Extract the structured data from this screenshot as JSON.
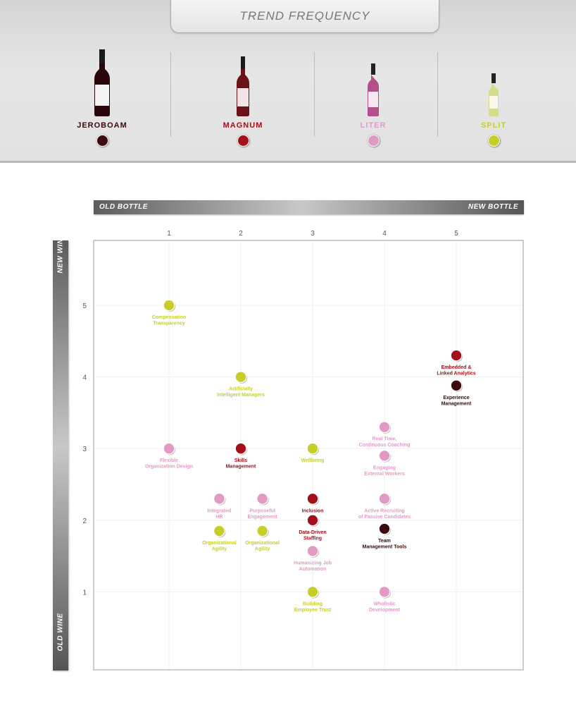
{
  "header": {
    "title": "TREND FREQUENCY",
    "sizes": [
      {
        "label": "JEROBOAM",
        "color": "#3a0a0c",
        "label_color": "#3a0a0c"
      },
      {
        "label": "MAGNUM",
        "color": "#a3101a",
        "label_color": "#a3101a"
      },
      {
        "label": "LITER",
        "color": "#e29ac4",
        "label_color": "#e29ac4"
      },
      {
        "label": "SPLIT",
        "color": "#c6cf2a",
        "label_color": "#c6cf2a"
      }
    ]
  },
  "axes": {
    "x_left_label": "OLD BOTTLE",
    "x_right_label": "NEW BOTTLE",
    "y_top_label": "NEW WINE",
    "y_bottom_label": "OLD WINE"
  },
  "chart_data": {
    "type": "scatter",
    "x_ticks": [
      1,
      2,
      3,
      4,
      5
    ],
    "y_ticks": [
      1,
      2,
      3,
      4,
      5
    ],
    "xlim": [
      0,
      6
    ],
    "ylim": [
      0,
      6
    ],
    "grid": true,
    "series_colors": {
      "JEROBOAM": "#3a0a0c",
      "MAGNUM": "#a3101a",
      "LITER": "#e29ac4",
      "SPLIT": "#c6cf2a"
    },
    "points": [
      {
        "label": [
          "Compensation",
          "Transparency"
        ],
        "x": 1.0,
        "y": 5.0,
        "size": "SPLIT"
      },
      {
        "label": [
          "Artificially",
          "Intelligent Managers"
        ],
        "x": 2.0,
        "y": 4.0,
        "size": "SPLIT"
      },
      {
        "label": [
          "Embedded &",
          "Linked Analytics"
        ],
        "x": 5.0,
        "y": 4.3,
        "size": "MAGNUM"
      },
      {
        "label": [
          "Experience",
          "Management"
        ],
        "x": 5.0,
        "y": 3.88,
        "size": "JEROBOAM"
      },
      {
        "label": [
          "Real Time,",
          "Continuous Coaching"
        ],
        "x": 4.0,
        "y": 3.3,
        "size": "LITER"
      },
      {
        "label": [
          "Flexible",
          "Organization Design"
        ],
        "x": 1.0,
        "y": 3.0,
        "size": "LITER"
      },
      {
        "label": [
          "Skills",
          "Management"
        ],
        "x": 2.0,
        "y": 3.0,
        "size": "MAGNUM"
      },
      {
        "label": [
          "Wellbeing"
        ],
        "x": 3.0,
        "y": 3.0,
        "size": "SPLIT"
      },
      {
        "label": [
          "Engaging",
          "External Workers"
        ],
        "x": 4.0,
        "y": 2.9,
        "size": "LITER"
      },
      {
        "label": [
          "Integrated",
          "HR"
        ],
        "x": 1.7,
        "y": 2.3,
        "size": "LITER"
      },
      {
        "label": [
          "Purposeful",
          "Engagement"
        ],
        "x": 2.3,
        "y": 2.3,
        "size": "LITER"
      },
      {
        "label": [
          "Inclusion"
        ],
        "x": 3.0,
        "y": 2.3,
        "size": "MAGNUM"
      },
      {
        "label": [
          "Active Recruiting",
          "of Passive Candidates"
        ],
        "x": 4.0,
        "y": 2.3,
        "size": "LITER"
      },
      {
        "label": [
          "Data-Driven",
          "Staffing"
        ],
        "x": 3.0,
        "y": 2.0,
        "size": "MAGNUM"
      },
      {
        "label": [
          "Team",
          "Management Tools"
        ],
        "x": 4.0,
        "y": 1.88,
        "size": "JEROBOAM"
      },
      {
        "label": [
          "Organizational",
          "Agility"
        ],
        "x": 1.7,
        "y": 1.85,
        "size": "SPLIT"
      },
      {
        "label": [
          "Organizational",
          "Agility"
        ],
        "x": 2.3,
        "y": 1.85,
        "size": "SPLIT"
      },
      {
        "label": [
          "Humanizing Job",
          "Automation"
        ],
        "x": 3.0,
        "y": 1.57,
        "size": "LITER"
      },
      {
        "label": [
          "Building",
          "Employee Trust"
        ],
        "x": 3.0,
        "y": 1.0,
        "size": "SPLIT"
      },
      {
        "label": [
          "Wholistic",
          "Development"
        ],
        "x": 4.0,
        "y": 1.0,
        "size": "LITER"
      }
    ]
  }
}
